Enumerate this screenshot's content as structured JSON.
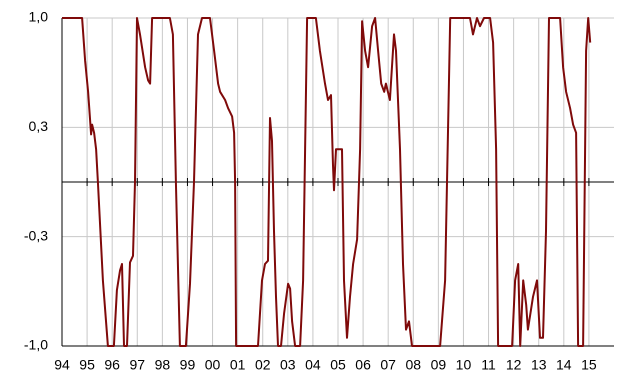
{
  "chart_data": {
    "type": "line",
    "x": [
      1994.0,
      1994.8,
      1994.92,
      1995.04,
      1995.16,
      1995.2,
      1995.28,
      1995.36,
      1995.43,
      1995.63,
      1995.83,
      1996.07,
      1996.19,
      1996.31,
      1996.39,
      1996.47,
      1996.59,
      1996.71,
      1996.83,
      1996.91,
      1996.99,
      1997.11,
      1997.31,
      1997.43,
      1997.51,
      1997.59,
      1998.3,
      1998.42,
      1998.54,
      1998.7,
      1998.94,
      1999.1,
      1999.26,
      1999.42,
      1999.58,
      1999.9,
      2000.06,
      2000.22,
      2000.3,
      2000.5,
      2000.62,
      2000.78,
      2000.86,
      2000.9,
      2000.94,
      2001.81,
      2001.97,
      2002.09,
      2002.21,
      2002.29,
      2002.37,
      2002.45,
      2002.53,
      2002.61,
      2002.73,
      2002.85,
      2003.01,
      2003.09,
      2003.17,
      2003.29,
      2003.49,
      2003.61,
      2003.69,
      2003.77,
      2004.12,
      2004.28,
      2004.48,
      2004.6,
      2004.72,
      2004.8,
      2004.84,
      2004.92,
      2005.0,
      2005.16,
      2005.24,
      2005.36,
      2005.48,
      2005.6,
      2005.76,
      2005.88,
      2005.96,
      2006.08,
      2006.2,
      2006.36,
      2006.48,
      2006.6,
      2006.72,
      2006.84,
      2006.91,
      2007.07,
      2007.23,
      2007.31,
      2007.47,
      2007.59,
      2007.71,
      2007.83,
      2007.95,
      2009.07,
      2009.27,
      2009.47,
      2010.26,
      2010.38,
      2010.54,
      2010.66,
      2010.82,
      2011.06,
      2011.18,
      2011.3,
      2011.38,
      2011.94,
      2012.06,
      2012.18,
      2012.26,
      2012.38,
      2012.5,
      2012.57,
      2012.77,
      2012.93,
      2013.05,
      2013.17,
      2013.29,
      2013.41,
      2013.85,
      2013.97,
      2014.09,
      2014.25,
      2014.37,
      2014.49,
      2014.57,
      2014.77,
      2014.89,
      2014.97,
      2015.05
    ],
    "series": [
      {
        "color": "#7f0a0a",
        "values": [
          1.0,
          1.0,
          0.74,
          0.55,
          0.29,
          0.35,
          0.3,
          0.2,
          0.0,
          -0.6,
          -1.0,
          -1.0,
          -0.66,
          -0.54,
          -0.5,
          -1.0,
          -1.0,
          -0.49,
          -0.45,
          0.0,
          1.0,
          0.9,
          0.7,
          0.62,
          0.6,
          1.0,
          1.0,
          0.9,
          0.0,
          -1.0,
          -1.0,
          -0.62,
          0.0,
          0.9,
          1.0,
          1.0,
          0.8,
          0.6,
          0.55,
          0.5,
          0.45,
          0.4,
          0.3,
          0.0,
          -1.0,
          -1.0,
          -0.6,
          -0.5,
          -0.48,
          0.39,
          0.25,
          -0.3,
          -0.7,
          -1.0,
          -1.0,
          -0.8,
          -0.62,
          -0.65,
          -0.85,
          -1.0,
          -1.0,
          -0.6,
          0.2,
          1.0,
          1.0,
          0.8,
          0.6,
          0.5,
          0.53,
          0.1,
          -0.05,
          0.2,
          0.2,
          0.2,
          -0.6,
          -0.95,
          -0.7,
          -0.5,
          -0.35,
          0.2,
          0.98,
          0.8,
          0.7,
          0.95,
          1.0,
          0.8,
          0.6,
          0.55,
          0.6,
          0.5,
          0.9,
          0.8,
          0.2,
          -0.5,
          -0.9,
          -0.85,
          -1.0,
          -1.0,
          -0.6,
          1.0,
          1.0,
          0.9,
          1.0,
          0.95,
          1.0,
          1.0,
          0.85,
          0.2,
          -1.0,
          -1.0,
          -0.6,
          -0.5,
          -1.0,
          -0.6,
          -0.75,
          -0.9,
          -0.7,
          -0.6,
          -0.95,
          -0.95,
          -0.3,
          1.0,
          1.0,
          0.7,
          0.55,
          0.45,
          0.35,
          0.3,
          -1.0,
          -1.0,
          0.8,
          1.0,
          0.85
        ]
      }
    ],
    "xlim": [
      1994,
      2016
    ],
    "xticks": [
      {
        "value": 1994,
        "label": "94"
      },
      {
        "value": 1995,
        "label": "95"
      },
      {
        "value": 1996,
        "label": "96"
      },
      {
        "value": 1997,
        "label": "97"
      },
      {
        "value": 1998,
        "label": "98"
      },
      {
        "value": 1999,
        "label": "99"
      },
      {
        "value": 2000,
        "label": "00"
      },
      {
        "value": 2001,
        "label": "01"
      },
      {
        "value": 2002,
        "label": "02"
      },
      {
        "value": 2003,
        "label": "03"
      },
      {
        "value": 2004,
        "label": "04"
      },
      {
        "value": 2005,
        "label": "05"
      },
      {
        "value": 2006,
        "label": "06"
      },
      {
        "value": 2007,
        "label": "07"
      },
      {
        "value": 2008,
        "label": "08"
      },
      {
        "value": 2009,
        "label": "09"
      },
      {
        "value": 2010,
        "label": "10"
      },
      {
        "value": 2011,
        "label": "11"
      },
      {
        "value": 2012,
        "label": "12"
      },
      {
        "value": 2013,
        "label": "13"
      },
      {
        "value": 2014,
        "label": "14"
      },
      {
        "value": 2015,
        "label": "15"
      }
    ],
    "ylim": [
      -1,
      1
    ],
    "yticks": [
      {
        "value": -1,
        "label": "-1,0"
      },
      {
        "value": -0.333,
        "label": "-0,3"
      },
      {
        "value": 0.333,
        "label": "0,3"
      },
      {
        "value": 1,
        "label": "1,0"
      }
    ],
    "grid": true
  }
}
